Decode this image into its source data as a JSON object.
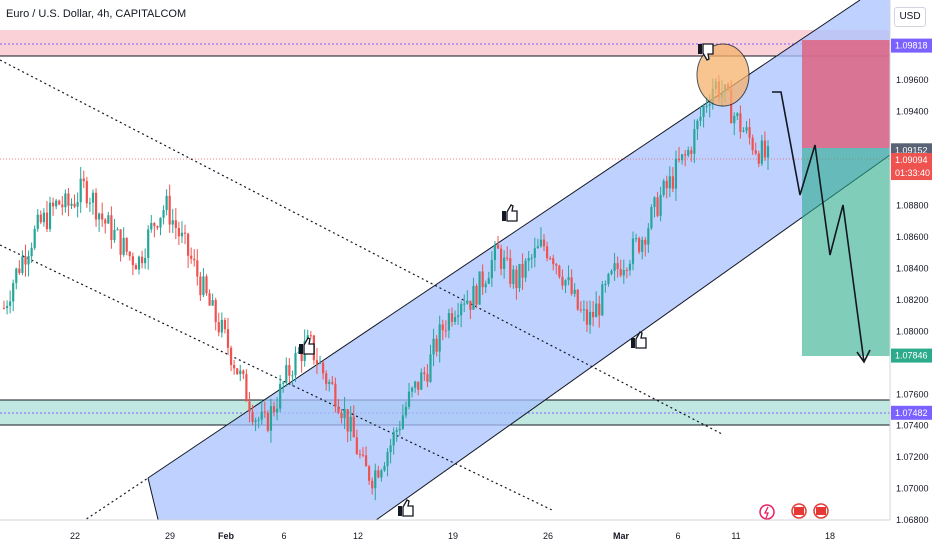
{
  "header": {
    "title": "Euro / U.S. Dollar, 4h, CAPITALCOM",
    "currency": "USD"
  },
  "colors": {
    "up": "#26a69a",
    "down": "#ef5350",
    "channel": "#a9c2ff",
    "resistance_zone": "#f8c9cf",
    "support_zone": "#b9e6dd",
    "target_box": "#2bab8c",
    "stop_box": "#e05c7a",
    "current_price": "#ef5350",
    "circle": "#f6b26b"
  },
  "chart_data": {
    "type": "candlestick",
    "symbol": "Euro / U.S. Dollar",
    "timeframe": "4h",
    "source": "CAPITALCOM",
    "x_ticks": [
      "22",
      "29",
      "Feb",
      "6",
      "12",
      "19",
      "26",
      "Mar",
      "6",
      "11",
      "18"
    ],
    "y_ticks": [
      "1.09600",
      "1.09400",
      "1.08800",
      "1.08600",
      "1.08400",
      "1.08200",
      "1.08000",
      "1.07600",
      "1.07400",
      "1.07200",
      "1.07000",
      "1.06800"
    ],
    "ylim": [
      1.068,
      1.1
    ],
    "price_tags": [
      {
        "value": "1.09818",
        "role": "resistance"
      },
      {
        "value": "1.09152",
        "role": "entry"
      },
      {
        "value": "1.09094",
        "role": "current"
      },
      {
        "value": "01:33:40",
        "role": "countdown"
      },
      {
        "value": "1.07846",
        "role": "target"
      },
      {
        "value": "1.07482",
        "role": "support"
      }
    ],
    "zones": {
      "resistance": [
        1.0975,
        1.099
      ],
      "support": [
        1.0738,
        1.0755
      ]
    },
    "trade": {
      "entry": 1.0915,
      "stop": 1.0982,
      "target": 1.0785
    },
    "close_path": [
      1.0815,
      1.0832,
      1.0846,
      1.0858,
      1.0868,
      1.0874,
      1.0882,
      1.0879,
      1.0885,
      1.0892,
      1.0883,
      1.0871,
      1.0864,
      1.0856,
      1.0848,
      1.0845,
      1.086,
      1.0873,
      1.088,
      1.0868,
      1.0855,
      1.0843,
      1.0829,
      1.0814,
      1.0803,
      1.079,
      1.0775,
      1.076,
      1.0746,
      1.074,
      1.0752,
      1.0765,
      1.0778,
      1.0787,
      1.0792,
      1.078,
      1.0768,
      1.076,
      1.0746,
      1.073,
      1.0712,
      1.0708,
      1.0718,
      1.0728,
      1.0742,
      1.0756,
      1.0766,
      1.0775,
      1.079,
      1.0805,
      1.0815,
      1.0823,
      1.082,
      1.083,
      1.0842,
      1.085,
      1.0838,
      1.0832,
      1.084,
      1.0848,
      1.0855,
      1.085,
      1.0838,
      1.0826,
      1.0812,
      1.0806,
      1.0815,
      1.0826,
      1.0838,
      1.0846,
      1.0852,
      1.086,
      1.0872,
      1.0885,
      1.0893,
      1.0905,
      1.0912,
      1.0928,
      1.0945,
      1.0958,
      1.0952,
      1.094,
      1.093,
      1.0922,
      1.0915,
      1.0909
    ]
  }
}
